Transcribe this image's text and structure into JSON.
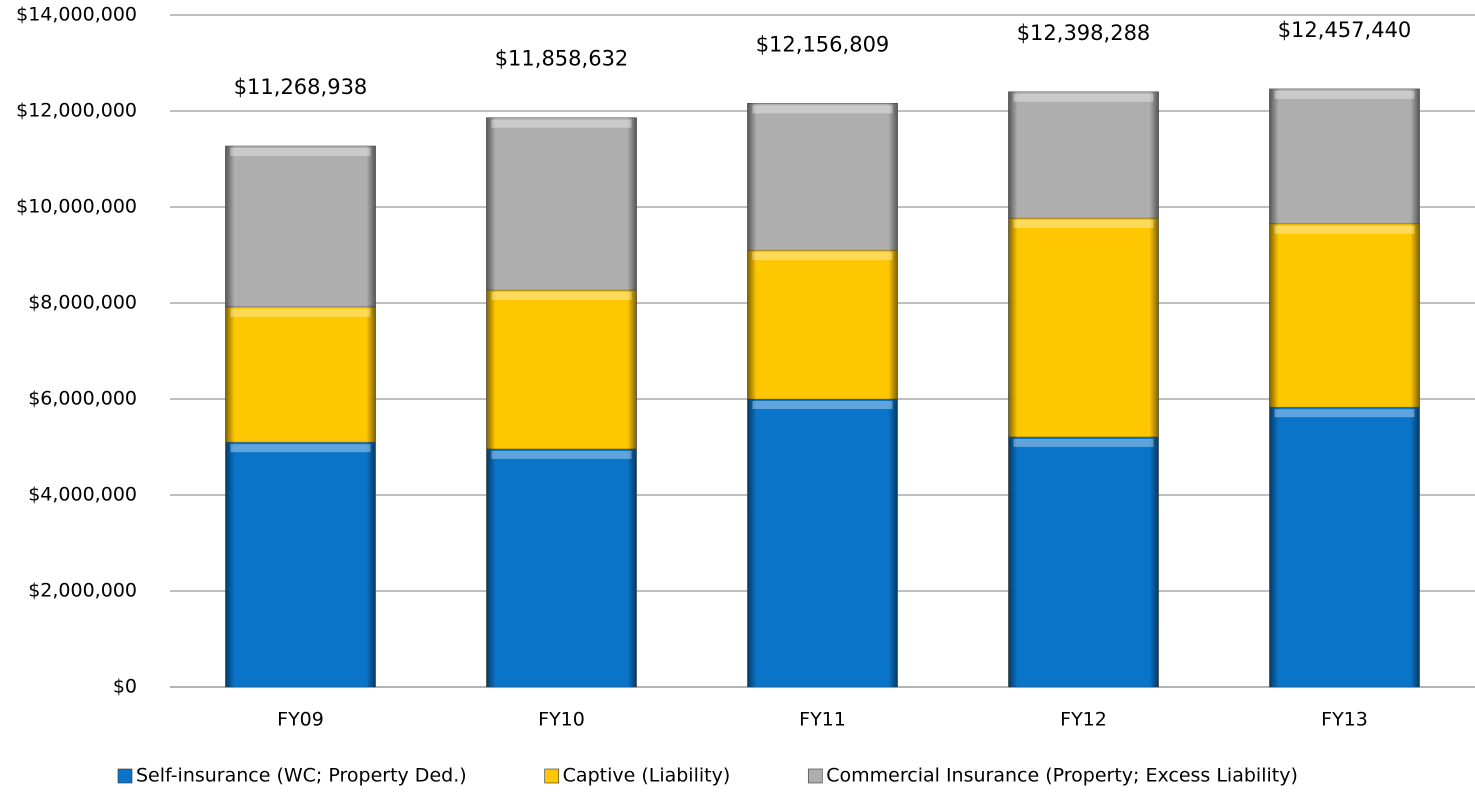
{
  "chart_data": {
    "type": "stacked_bar",
    "categories": [
      "FY09",
      "FY10",
      "FY11",
      "FY12",
      "FY13"
    ],
    "series": [
      {
        "name": "Self-insurance (WC; Property Ded.)",
        "color": "#0a74c9",
        "values": [
          5100000,
          4960000,
          6000000,
          5210000,
          5830000
        ]
      },
      {
        "name": "Captive (Liability)",
        "color": "#ffc700",
        "values": [
          2820000,
          3310000,
          3100000,
          4560000,
          3820000
        ]
      },
      {
        "name": "Commercial Insurance (Property; Excess Liability)",
        "color": "#aeaeae",
        "values": [
          3350000,
          3590000,
          3060000,
          2630000,
          2810000
        ]
      }
    ],
    "total_labels": [
      "$11,268,938",
      "$11,858,632",
      "$12,156,809",
      "$12,398,288",
      "$12,457,440"
    ],
    "ylim": [
      0,
      14000000
    ],
    "yticks": [
      {
        "value": 0,
        "label": "$0"
      },
      {
        "value": 2000000,
        "label": "$2,000,000"
      },
      {
        "value": 4000000,
        "label": "$4,000,000"
      },
      {
        "value": 6000000,
        "label": "$6,000,000"
      },
      {
        "value": 8000000,
        "label": "$8,000,000"
      },
      {
        "value": 10000000,
        "label": "$10,000,000"
      },
      {
        "value": 12000000,
        "label": "$12,000,000"
      },
      {
        "value": 14000000,
        "label": "$14,000,000"
      }
    ],
    "grid": true,
    "legend": "bottom"
  }
}
